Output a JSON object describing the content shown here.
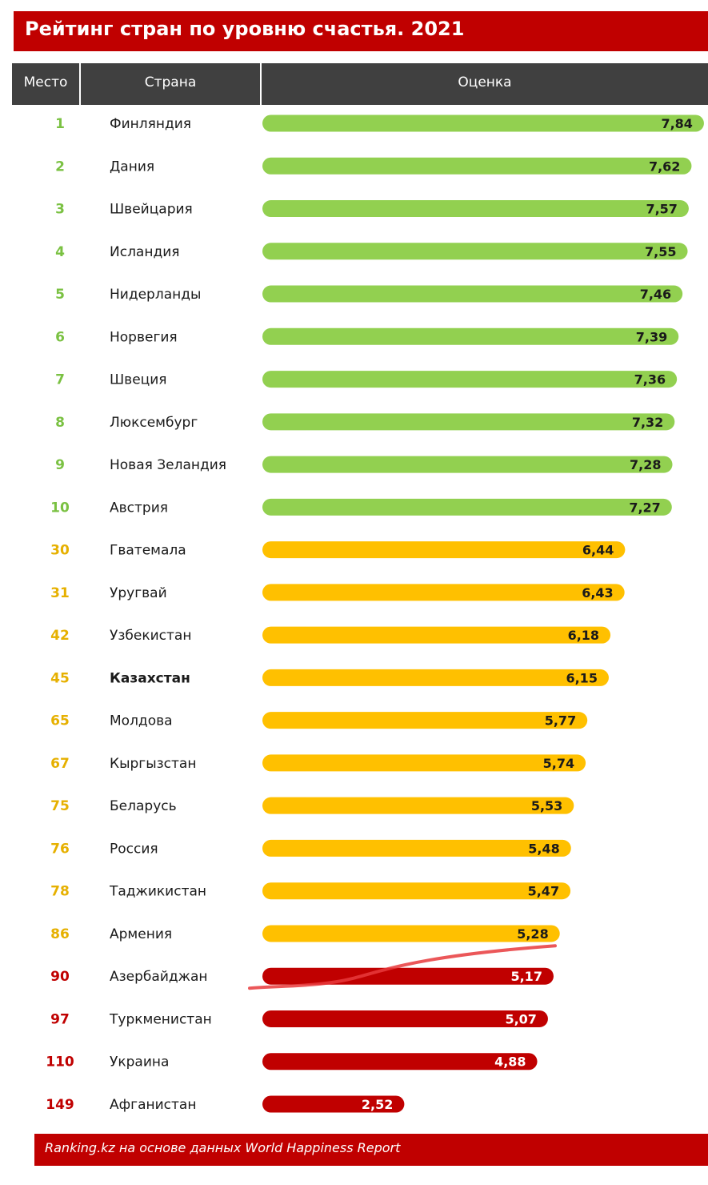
{
  "title": "Рейтинг стран по уровню счастья. 2021",
  "header": {
    "rank": "Место",
    "country": "Страна",
    "score": "Оценка"
  },
  "footer": "Ranking.kz на основе данных World Happiness Report",
  "colors": {
    "green": "#92d050",
    "yellow": "#ffc000",
    "red": "#c00000",
    "header_bg": "#404040",
    "title_bg": "#c00000",
    "hand_stroke": "#e8393c"
  },
  "chart_data": {
    "type": "bar",
    "orientation": "horizontal",
    "xlim": [
      0,
      8
    ],
    "rows": [
      {
        "rank": "1",
        "country": "Финляндия",
        "score": 7.84,
        "label": "7,84",
        "group": "green"
      },
      {
        "rank": "2",
        "country": "Дания",
        "score": 7.62,
        "label": "7,62",
        "group": "green"
      },
      {
        "rank": "3",
        "country": "Швейцария",
        "score": 7.57,
        "label": "7,57",
        "group": "green"
      },
      {
        "rank": "4",
        "country": "Исландия",
        "score": 7.55,
        "label": "7,55",
        "group": "green"
      },
      {
        "rank": "5",
        "country": "Нидерланды",
        "score": 7.46,
        "label": "7,46",
        "group": "green"
      },
      {
        "rank": "6",
        "country": "Норвегия",
        "score": 7.39,
        "label": "7,39",
        "group": "green"
      },
      {
        "rank": "7",
        "country": "Швеция",
        "score": 7.36,
        "label": "7,36",
        "group": "green"
      },
      {
        "rank": "8",
        "country": "Люксембург",
        "score": 7.32,
        "label": "7,32",
        "group": "green"
      },
      {
        "rank": "9",
        "country": "Новая Зеландия",
        "score": 7.28,
        "label": "7,28",
        "group": "green"
      },
      {
        "rank": "10",
        "country": "Австрия",
        "score": 7.27,
        "label": "7,27",
        "group": "green"
      },
      {
        "rank": "30",
        "country": "Гватемала",
        "score": 6.44,
        "label": "6,44",
        "group": "yellow"
      },
      {
        "rank": "31",
        "country": "Уругвай",
        "score": 6.43,
        "label": "6,43",
        "group": "yellow"
      },
      {
        "rank": "42",
        "country": "Узбекистан",
        "score": 6.18,
        "label": "6,18",
        "group": "yellow"
      },
      {
        "rank": "45",
        "country": "Казахстан",
        "score": 6.15,
        "label": "6,15",
        "group": "yellow",
        "bold": true
      },
      {
        "rank": "65",
        "country": "Молдова",
        "score": 5.77,
        "label": "5,77",
        "group": "yellow"
      },
      {
        "rank": "67",
        "country": "Кыргызстан",
        "score": 5.74,
        "label": "5,74",
        "group": "yellow"
      },
      {
        "rank": "75",
        "country": "Беларусь",
        "score": 5.53,
        "label": "5,53",
        "group": "yellow"
      },
      {
        "rank": "76",
        "country": "Россия",
        "score": 5.48,
        "label": "5,48",
        "group": "yellow"
      },
      {
        "rank": "78",
        "country": "Таджикистан",
        "score": 5.47,
        "label": "5,47",
        "group": "yellow"
      },
      {
        "rank": "86",
        "country": "Армения",
        "score": 5.28,
        "label": "5,28",
        "group": "yellow"
      },
      {
        "rank": "90",
        "country": "Азербайджан",
        "score": 5.17,
        "label": "5,17",
        "group": "red",
        "scribble": true
      },
      {
        "rank": "97",
        "country": "Туркменистан",
        "score": 5.07,
        "label": "5,07",
        "group": "red"
      },
      {
        "rank": "110",
        "country": "Украина",
        "score": 4.88,
        "label": "4,88",
        "group": "red"
      },
      {
        "rank": "149",
        "country": "Афганистан",
        "score": 2.52,
        "label": "2,52",
        "group": "red"
      }
    ]
  }
}
